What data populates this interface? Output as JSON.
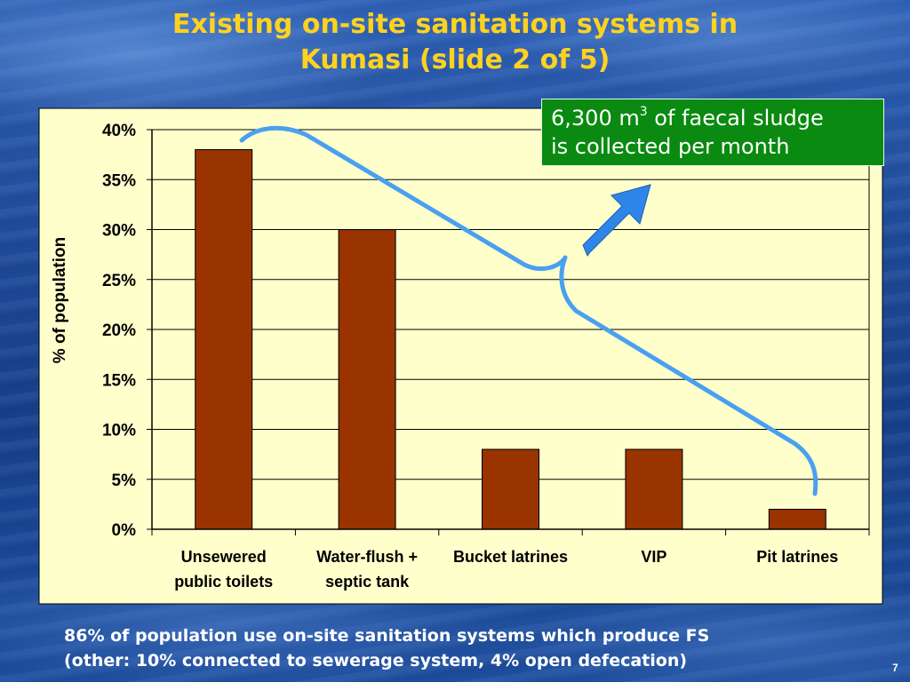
{
  "slide": {
    "title_line1": "Existing on-site sanitation systems in",
    "title_line2": "Kumasi (slide 2 of 5)",
    "callout_pre": "6,300 m",
    "callout_sup": "3",
    "callout_post": " of faecal sludge",
    "callout_line2": "is collected per month",
    "footnote_line1": "86% of population use on-site sanitation systems which produce FS",
    "footnote_line2": "(other: 10% connected to sewerage system, 4% open defecation)",
    "page_number": "7"
  },
  "colors": {
    "title": "#ffd21f",
    "bar": "#993300",
    "plot_background": "#ffffcc",
    "callout_background": "#0a8a10",
    "annotation_line": "#4aa0f0",
    "arrow": "#2e86e8"
  },
  "chart_data": {
    "type": "bar",
    "title": "",
    "xlabel": "",
    "ylabel": "% of population",
    "categories": [
      [
        "Unsewered",
        "public toilets"
      ],
      [
        "Water-flush +",
        "septic tank"
      ],
      [
        "Bucket latrines"
      ],
      [
        "VIP"
      ],
      [
        "Pit latrines"
      ]
    ],
    "values": [
      38,
      30,
      8,
      8,
      2
    ],
    "yticks": [
      "0%",
      "5%",
      "10%",
      "15%",
      "20%",
      "25%",
      "30%",
      "35%",
      "40%"
    ],
    "ylim": [
      0,
      40
    ],
    "grid": true,
    "legend": "none"
  }
}
